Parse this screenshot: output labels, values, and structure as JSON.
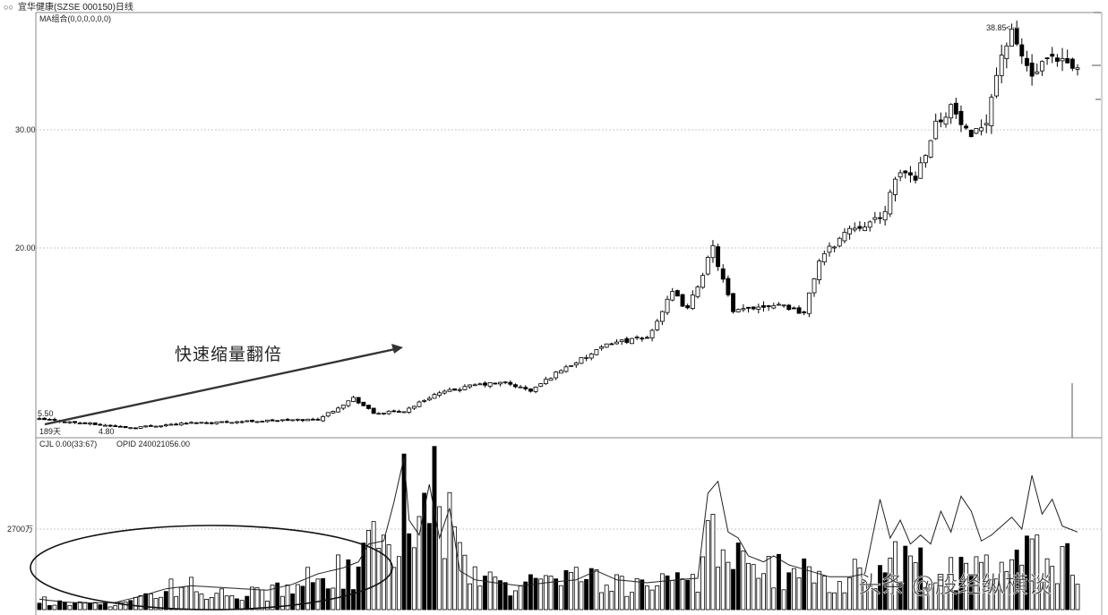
{
  "header": {
    "title": "宜华健康(SZSE 000150)日线",
    "ma_label": "MA组合(0,0,0,0,0,0)"
  },
  "annotations": {
    "arrow_text": "快速缩量翻倍",
    "start_price": "5.50",
    "low_price": "4.80",
    "days": "189天",
    "high_price": "38.85"
  },
  "volume_header": {
    "cjl": "CJL  0.00(33:67)",
    "opid": "OPID  240021056.00"
  },
  "watermark": "头条 @股经纵横谈",
  "colors": {
    "up": "#ffffff",
    "down": "#000000",
    "grid": "#c8c8c8",
    "line": "#222222"
  },
  "chart_data": [
    {
      "type": "candlestick",
      "title": "宜华健康(SZSE 000150)日线",
      "y_ticks": [
        20.0,
        30.0
      ],
      "y_tick_labels": [
        "20.00",
        "30.00"
      ],
      "ylim": [
        4.2,
        40.0
      ],
      "waypoints": [
        [
          0,
          5.5
        ],
        [
          18,
          4.8
        ],
        [
          30,
          5.2
        ],
        [
          55,
          5.5
        ],
        [
          62,
          7.3
        ],
        [
          66,
          6.0
        ],
        [
          72,
          6.2
        ],
        [
          78,
          7.6
        ],
        [
          86,
          8.4
        ],
        [
          92,
          8.6
        ],
        [
          97,
          7.9
        ],
        [
          103,
          9.7
        ],
        [
          109,
          11.0
        ],
        [
          113,
          12.0
        ],
        [
          120,
          12.4
        ],
        [
          125,
          16.2
        ],
        [
          128,
          14.8
        ],
        [
          133,
          20.0
        ],
        [
          137,
          14.5
        ],
        [
          141,
          15.0
        ],
        [
          146,
          15.3
        ],
        [
          151,
          14.5
        ],
        [
          154,
          19.0
        ],
        [
          160,
          21.7
        ],
        [
          166,
          22.4
        ],
        [
          170,
          26.5
        ],
        [
          173,
          26.0
        ],
        [
          177,
          30.5
        ],
        [
          180,
          32.0
        ],
        [
          184,
          29.0
        ],
        [
          187,
          31.0
        ],
        [
          190,
          36.5
        ],
        [
          192,
          38.0
        ],
        [
          196,
          34.5
        ],
        [
          199,
          35.8
        ],
        [
          203,
          35.5
        ],
        [
          205,
          35.0
        ]
      ],
      "count": 206
    },
    {
      "type": "bar",
      "name": "CJL",
      "y_tick_labels": [
        "2700万"
      ],
      "y_ticks": [
        2700
      ],
      "ylim": [
        0,
        5200
      ],
      "waypoints": [
        [
          0,
          350
        ],
        [
          5,
          220
        ],
        [
          10,
          180
        ],
        [
          15,
          200
        ],
        [
          20,
          400
        ],
        [
          25,
          750
        ],
        [
          30,
          820
        ],
        [
          35,
          700
        ],
        [
          40,
          680
        ],
        [
          45,
          620
        ],
        [
          50,
          900
        ],
        [
          55,
          1300
        ],
        [
          60,
          1400
        ],
        [
          63,
          1500
        ],
        [
          65,
          2250
        ],
        [
          70,
          2300
        ],
        [
          72,
          4800
        ],
        [
          75,
          2800
        ],
        [
          78,
          4100
        ],
        [
          82,
          3200
        ],
        [
          86,
          1100
        ],
        [
          92,
          900
        ],
        [
          100,
          1000
        ],
        [
          110,
          1200
        ],
        [
          115,
          900
        ],
        [
          125,
          1000
        ],
        [
          130,
          1100
        ],
        [
          133,
          3300
        ],
        [
          136,
          2000
        ],
        [
          140,
          1500
        ],
        [
          145,
          1400
        ],
        [
          152,
          1300
        ],
        [
          158,
          1000
        ],
        [
          162,
          1400
        ],
        [
          166,
          1500
        ],
        [
          170,
          1800
        ],
        [
          175,
          1600
        ],
        [
          180,
          1300
        ],
        [
          186,
          1600
        ],
        [
          190,
          2200
        ],
        [
          195,
          1900
        ],
        [
          200,
          1900
        ],
        [
          205,
          1800
        ]
      ],
      "line_waypoints": [
        [
          0,
          350
        ],
        [
          5,
          250
        ],
        [
          10,
          220
        ],
        [
          15,
          240
        ],
        [
          20,
          450
        ],
        [
          25,
          700
        ],
        [
          30,
          800
        ],
        [
          35,
          750
        ],
        [
          40,
          700
        ],
        [
          45,
          650
        ],
        [
          50,
          850
        ],
        [
          55,
          1200
        ],
        [
          60,
          1400
        ],
        [
          63,
          1600
        ],
        [
          65,
          2200
        ],
        [
          68,
          2300
        ],
        [
          70,
          3600
        ],
        [
          72,
          5100
        ],
        [
          73,
          3000
        ],
        [
          75,
          2500
        ],
        [
          77,
          4200
        ],
        [
          79,
          2400
        ],
        [
          81,
          3400
        ],
        [
          83,
          1300
        ],
        [
          86,
          1000
        ],
        [
          90,
          900
        ],
        [
          95,
          800
        ],
        [
          100,
          900
        ],
        [
          106,
          1000
        ],
        [
          110,
          1300
        ],
        [
          114,
          1000
        ],
        [
          120,
          900
        ],
        [
          126,
          1000
        ],
        [
          130,
          1050
        ],
        [
          132,
          3900
        ],
        [
          134,
          4300
        ],
        [
          136,
          2600
        ],
        [
          138,
          2400
        ],
        [
          140,
          1800
        ],
        [
          143,
          1600
        ],
        [
          145,
          1800
        ],
        [
          148,
          1500
        ],
        [
          152,
          1300
        ],
        [
          156,
          1100
        ],
        [
          160,
          1100
        ],
        [
          163,
          1200
        ],
        [
          166,
          3700
        ],
        [
          168,
          2400
        ],
        [
          170,
          3000
        ],
        [
          172,
          2200
        ],
        [
          174,
          2500
        ],
        [
          176,
          2200
        ],
        [
          178,
          3300
        ],
        [
          180,
          2600
        ],
        [
          182,
          3800
        ],
        [
          184,
          3300
        ],
        [
          186,
          2300
        ],
        [
          188,
          2500
        ],
        [
          190,
          2800
        ],
        [
          192,
          3100
        ],
        [
          194,
          2700
        ],
        [
          196,
          4500
        ],
        [
          198,
          3200
        ],
        [
          200,
          3700
        ],
        [
          202,
          2800
        ],
        [
          205,
          2600
        ]
      ],
      "count": 206
    }
  ]
}
